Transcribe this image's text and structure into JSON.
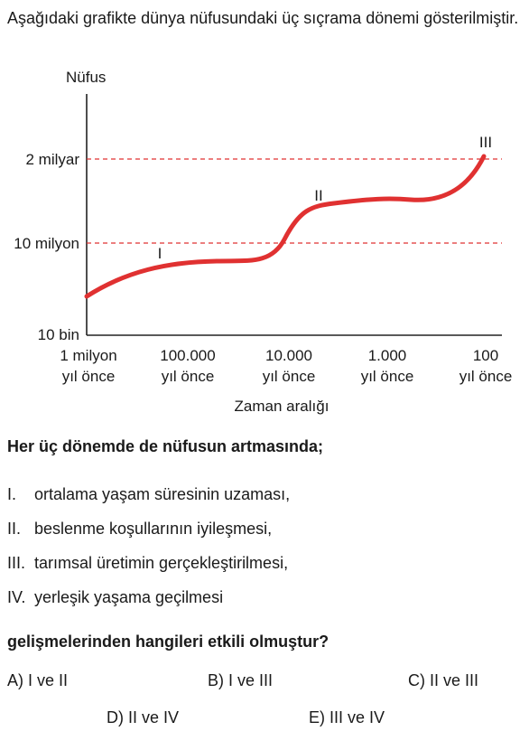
{
  "intro": "Aşağıdaki grafikte dünya nüfusundaki üç sıçrama dönemi gösterilmiştir.",
  "chart_data": {
    "type": "line",
    "ylabel": "Nüfus",
    "xlabel": "Zaman aralığı",
    "y_ticks": [
      "10 bin",
      "10 milyon",
      "2 milyar"
    ],
    "x_ticks": [
      [
        "1 milyon",
        "yıl önce"
      ],
      [
        "100.000",
        "yıl önce"
      ],
      [
        "10.000",
        "yıl önce"
      ],
      [
        "1.000",
        "yıl önce"
      ],
      [
        "100",
        "yıl önce"
      ]
    ],
    "reference_lines": [
      "10 milyon",
      "2 milyar"
    ],
    "period_labels": [
      "I",
      "II",
      "III"
    ],
    "line_color": "#e03131",
    "reference_color": "#e03131"
  },
  "stem": "Her üç dönemde de nüfusun artmasında;",
  "items": [
    {
      "num": "I.",
      "text": "ortalama yaşam süresinin uzaması,"
    },
    {
      "num": "II.",
      "text": "beslenme koşullarının iyileşmesi,"
    },
    {
      "num": "III.",
      "text": "tarımsal üretimin gerçekleştirilmesi,"
    },
    {
      "num": "IV.",
      "text": "yerleşik yaşama geçilmesi"
    }
  ],
  "question": "gelişmelerinden hangileri etkili olmuştur?",
  "answers": {
    "A": "A) I ve II",
    "B": "B) I ve III",
    "C": "C) II ve III",
    "D": "D) II ve IV",
    "E": "E) III ve IV"
  }
}
